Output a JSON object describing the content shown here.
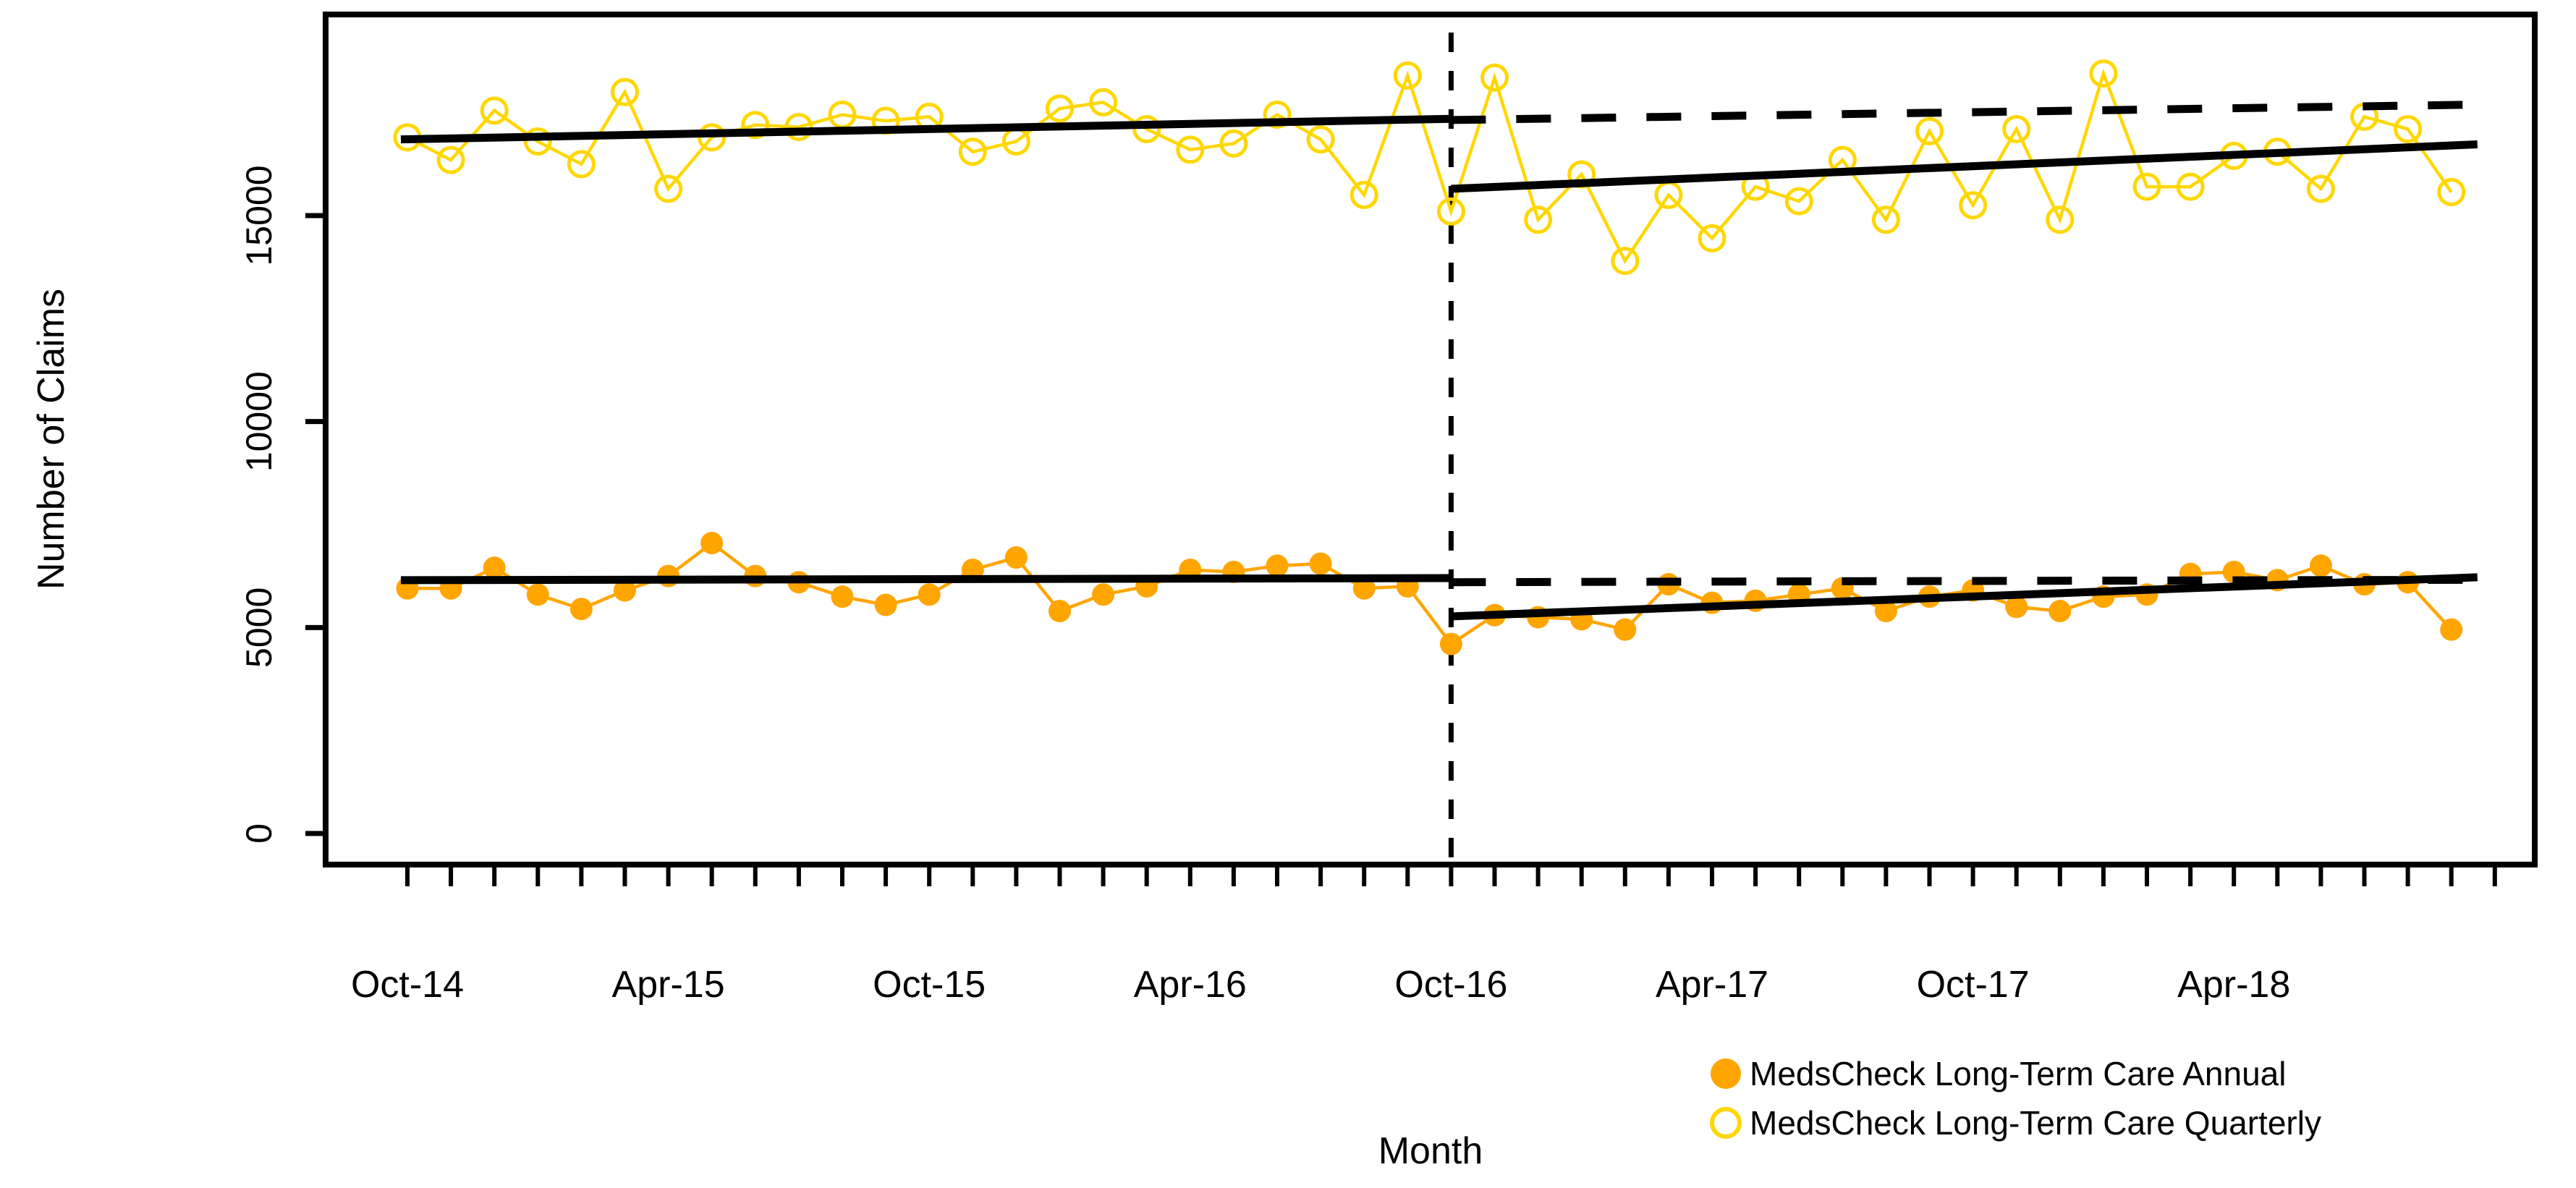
{
  "chart_data": {
    "type": "line",
    "title": "",
    "xlabel": "Month",
    "ylabel": "Number of Claims",
    "legend_position": "bottom-right",
    "grid": false,
    "ylim": [
      0,
      19500
    ],
    "y_ticks": [
      0,
      5000,
      10000,
      15000
    ],
    "x_tick_label_every": 6,
    "x_major_tick_labels": [
      "Oct-14",
      "Apr-15",
      "Oct-15",
      "Apr-16",
      "Oct-16",
      "Apr-17",
      "Oct-17",
      "Apr-18"
    ],
    "x_months": [
      "Oct-14",
      "Nov-14",
      "Dec-14",
      "Jan-15",
      "Feb-15",
      "Mar-15",
      "Apr-15",
      "May-15",
      "Jun-15",
      "Jul-15",
      "Aug-15",
      "Sep-15",
      "Oct-15",
      "Nov-15",
      "Dec-15",
      "Jan-16",
      "Feb-16",
      "Mar-16",
      "Apr-16",
      "May-16",
      "Jun-16",
      "Jul-16",
      "Aug-16",
      "Sep-16",
      "Oct-16",
      "Nov-16",
      "Dec-16",
      "Jan-17",
      "Feb-17",
      "Mar-17",
      "Apr-17",
      "May-17",
      "Jun-17",
      "Jul-17",
      "Aug-17",
      "Sep-17",
      "Oct-17",
      "Nov-17",
      "Dec-17",
      "Jan-18",
      "Feb-18",
      "Mar-18",
      "Apr-18",
      "May-18",
      "Jun-18",
      "Jul-18",
      "Aug-18",
      "Sep-18"
    ],
    "intervention_month_index": 24,
    "intervention_label": "Oct-16",
    "colors": {
      "annual": "#FFA500",
      "quarterly": "#FFD700",
      "trend": "#000000"
    },
    "series": [
      {
        "name": "MedsCheck Long-Term Care Annual",
        "marker": "filled-circle",
        "color": "#FFA500",
        "values": [
          5950,
          5950,
          6450,
          5800,
          5450,
          5900,
          6250,
          7050,
          6250,
          6100,
          5750,
          5550,
          5800,
          6400,
          6700,
          5400,
          5800,
          6000,
          6400,
          6350,
          6500,
          6550,
          5950,
          6000,
          4600,
          5300,
          5250,
          5200,
          4950,
          6050,
          5600,
          5650,
          5800,
          5950,
          5400,
          5750,
          5900,
          5500,
          5400,
          5750,
          5800,
          6300,
          6350,
          6150,
          6500,
          6050,
          6100,
          4950
        ]
      },
      {
        "name": "MedsCheck Long-Term Care Quarterly",
        "marker": "open-circle",
        "color": "#FFD700",
        "values": [
          16900,
          16350,
          17550,
          16800,
          16250,
          18000,
          15650,
          16900,
          17200,
          17150,
          17450,
          17300,
          17400,
          16550,
          16800,
          17600,
          17750,
          17100,
          16600,
          16750,
          17450,
          16850,
          15500,
          18400,
          15100,
          18350,
          14900,
          16000,
          13900,
          15500,
          14450,
          15700,
          15350,
          16350,
          14900,
          17050,
          15250,
          17100,
          14900,
          18450,
          15700,
          15700,
          16450,
          16550,
          15650,
          17400,
          17100,
          15570
        ]
      }
    ],
    "trend_segments": [
      {
        "name": "quarterly-pre-trend",
        "style": "solid",
        "m0": -0.15,
        "m1": 24,
        "v0": 16850,
        "v1": 17350
      },
      {
        "name": "quarterly-post-trend",
        "style": "solid",
        "m0": 24,
        "m1": 47.6,
        "v0": 15650,
        "v1": 16730
      },
      {
        "name": "quarterly-counterfactual",
        "style": "dashed",
        "m0": 24,
        "m1": 47.9,
        "v0": 17320,
        "v1": 17700
      },
      {
        "name": "annual-pre-trend",
        "style": "solid",
        "m0": -0.15,
        "m1": 24,
        "v0": 6150,
        "v1": 6200
      },
      {
        "name": "annual-post-trend",
        "style": "solid",
        "m0": 24,
        "m1": 47.6,
        "v0": 5270,
        "v1": 6220
      },
      {
        "name": "annual-counterfactual",
        "style": "dashed",
        "m0": 24,
        "m1": 47.9,
        "v0": 6100,
        "v1": 6160
      }
    ]
  }
}
